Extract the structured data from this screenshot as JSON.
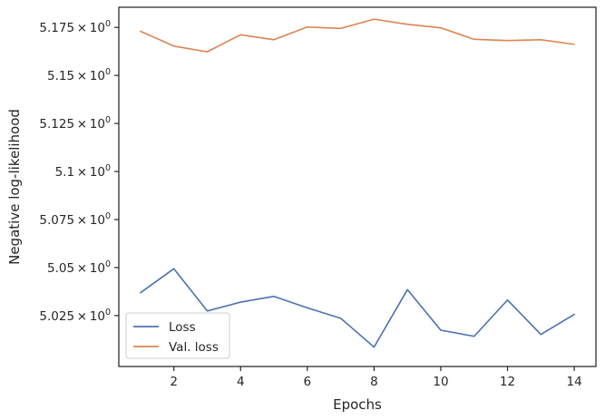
{
  "chart_data": {
    "type": "line",
    "title": "",
    "xlabel": "Epochs",
    "ylabel": "Negative log-likelihood",
    "x": [
      1,
      2,
      3,
      4,
      5,
      6,
      7,
      8,
      9,
      10,
      11,
      12,
      13,
      14
    ],
    "series": [
      {
        "name": "Loss",
        "color": "#4c72b0",
        "values": [
          5.0369,
          5.0494,
          5.0274,
          5.032,
          5.035,
          5.029,
          5.0236,
          5.0086,
          5.0385,
          5.0174,
          5.0142,
          5.0331,
          5.0152,
          5.0256
        ]
      },
      {
        "name": "Val. loss",
        "color": "#dd8452",
        "values": [
          5.173,
          5.1653,
          5.1623,
          5.1712,
          5.1686,
          5.1752,
          5.1745,
          5.1793,
          5.1766,
          5.1748,
          5.1688,
          5.1682,
          5.1686,
          5.1662
        ]
      }
    ],
    "xlim": [
      0.35,
      14.65
    ],
    "ylim": [
      4.9985,
      5.1855
    ],
    "xticks": [
      2,
      4,
      6,
      8,
      10,
      12,
      14
    ],
    "xtick_labels": [
      "2",
      "4",
      "6",
      "8",
      "10",
      "12",
      "14"
    ],
    "yticks": [
      5.025,
      5.05,
      5.075,
      5.1,
      5.125,
      5.15,
      5.175
    ],
    "ytick_labels": [
      [
        "5.025",
        "×",
        "10",
        "0"
      ],
      [
        "5.05",
        "×",
        "10",
        "0"
      ],
      [
        "5.075",
        "×",
        "10",
        "0"
      ],
      [
        "5.1",
        "×",
        "10",
        "0"
      ],
      [
        "5.125",
        "×",
        "10",
        "0"
      ],
      [
        "5.15",
        "×",
        "10",
        "0"
      ],
      [
        "5.175",
        "×",
        "10",
        "0"
      ]
    ],
    "legend_position": "lower-left",
    "grid": false
  }
}
